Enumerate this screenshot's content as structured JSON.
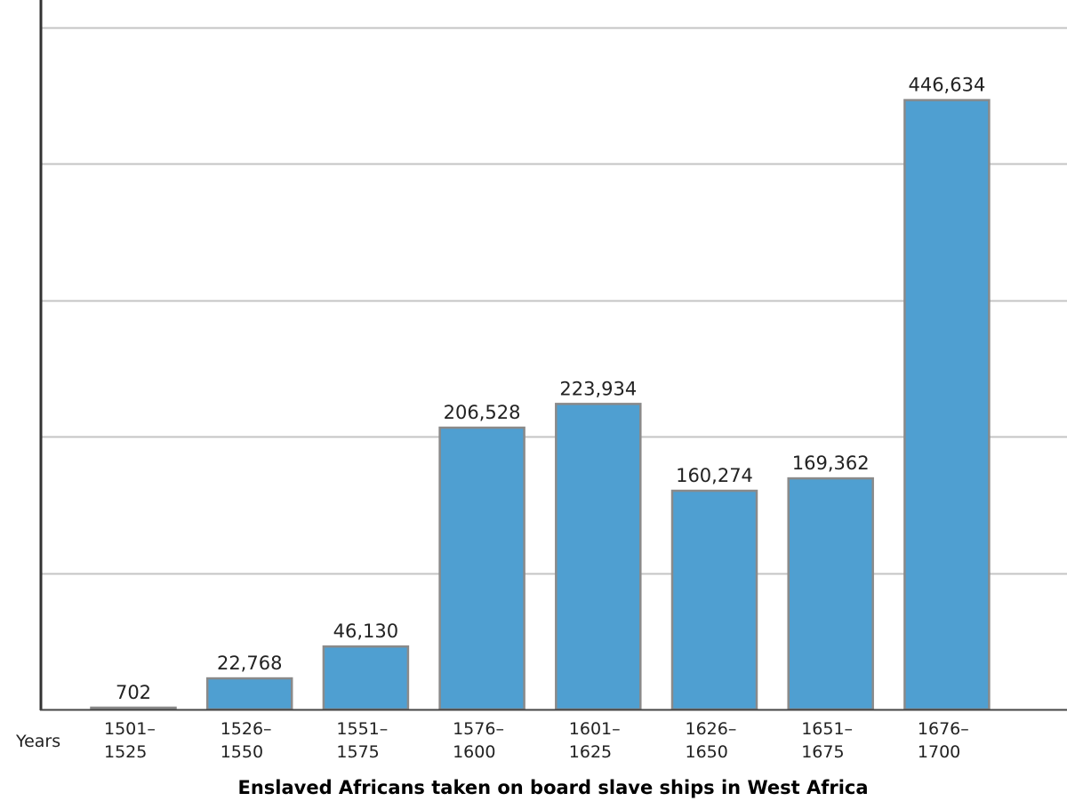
{
  "chart_data": {
    "type": "bar",
    "title": "Enslaved Africans taken on board slave ships in West Africa",
    "xlabel": "Years",
    "ylabel": "",
    "categories": [
      [
        "1501–",
        "1525"
      ],
      [
        "1526–",
        "1550"
      ],
      [
        "1551–",
        "1575"
      ],
      [
        "1576–",
        "1600"
      ],
      [
        "1601–",
        "1625"
      ],
      [
        "1626–",
        "1650"
      ],
      [
        "1651–",
        "1675"
      ],
      [
        "1676–",
        "1700"
      ]
    ],
    "values": [
      702,
      22768,
      46130,
      206528,
      223934,
      160274,
      169362,
      446634
    ],
    "data_labels": [
      "702",
      "22,768",
      "46,130",
      "206,528",
      "223,934",
      "160,274",
      "169,362",
      "446,634"
    ],
    "ylim": [
      0,
      520000
    ],
    "y_gridlines": [
      100000,
      200000,
      300000,
      400000,
      500000
    ],
    "y_tick_labels_shown": false,
    "grid": true,
    "bar_color": "#4f9fd1",
    "bar_border_color": "#8a8a8a"
  }
}
